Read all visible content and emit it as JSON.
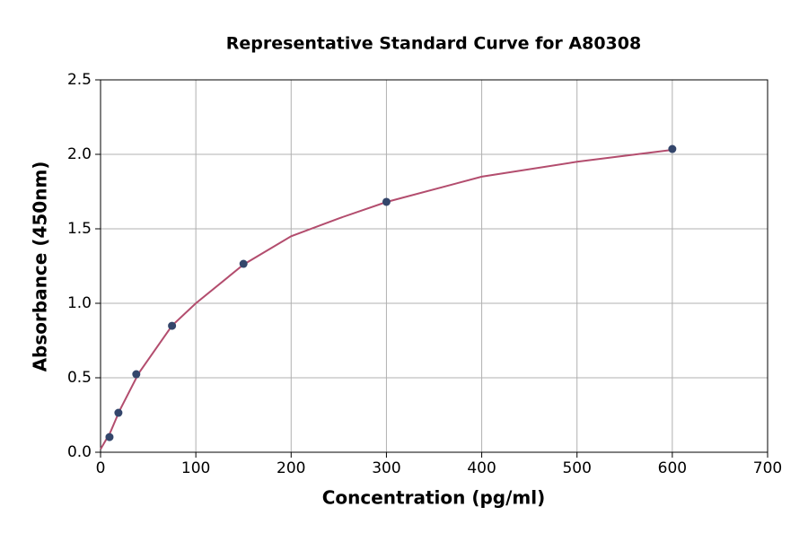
{
  "chart_data": {
    "type": "scatter",
    "title": "Representative Standard Curve for A80308",
    "x_label": "Concentration (pg/ml)",
    "y_label": "Absorbance (450nm)",
    "points": {
      "x": [
        9.375,
        18.75,
        37.5,
        75,
        150,
        300,
        600
      ],
      "y": [
        0.102,
        0.265,
        0.524,
        0.849,
        1.265,
        1.681,
        2.036
      ],
      "color": "#34466b"
    },
    "curve": {
      "x": [
        0,
        10,
        20,
        40,
        75,
        100,
        150,
        200,
        250,
        300,
        400,
        500,
        600
      ],
      "y": [
        0.02,
        0.13,
        0.28,
        0.53,
        0.85,
        1.0,
        1.26,
        1.45,
        1.57,
        1.68,
        1.85,
        1.95,
        2.03
      ],
      "color": "#b34d6e"
    },
    "xlim": [
      0,
      700
    ],
    "xticks": [
      0,
      100,
      200,
      300,
      400,
      500,
      600,
      700
    ],
    "ylim": [
      0,
      2.5
    ],
    "yticks": [
      {
        "value": 0,
        "label": "0.0"
      },
      0.5,
      {
        "value": 1,
        "label": "1.0"
      },
      1.5,
      {
        "value": 2,
        "label": "2.0"
      },
      2.5
    ],
    "grid": true
  }
}
